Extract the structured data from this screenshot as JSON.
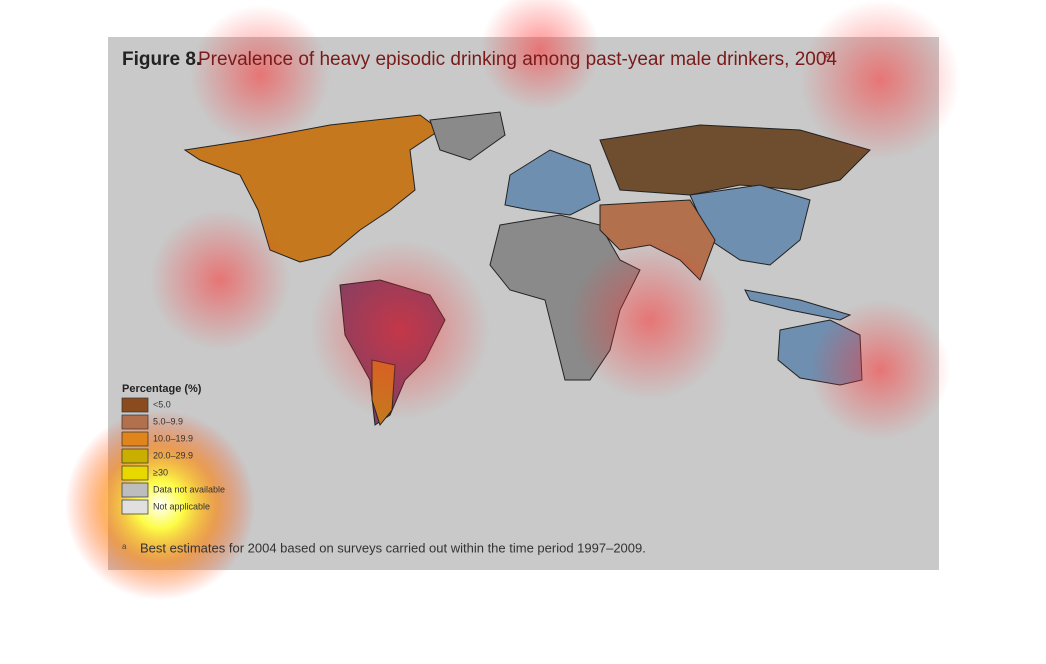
{
  "figure": {
    "label": "Figure 8.",
    "title": "Prevalence of heavy episodic drinking among past-year male drinkers, 2004",
    "title_note": "a"
  },
  "legend": {
    "title": "Percentage (%)",
    "items": [
      {
        "label": "<5.0",
        "color": "#8a4b1e"
      },
      {
        "label": "5.0–9.9",
        "color": "#b3704c"
      },
      {
        "label": "10.0–19.9",
        "color": "#e0841c"
      },
      {
        "label": "20.0–29.9",
        "color": "#c9b000"
      },
      {
        "label": "≥30",
        "color": "#e8d800"
      },
      {
        "label": "Data not available",
        "color": "#bdbdbd"
      },
      {
        "label": "Not applicable",
        "color": "#e0e0e0"
      }
    ]
  },
  "footnote": {
    "mark": "a",
    "text": "Best estimates for 2004 based on surveys carried out within the time period 1997–2009."
  }
}
